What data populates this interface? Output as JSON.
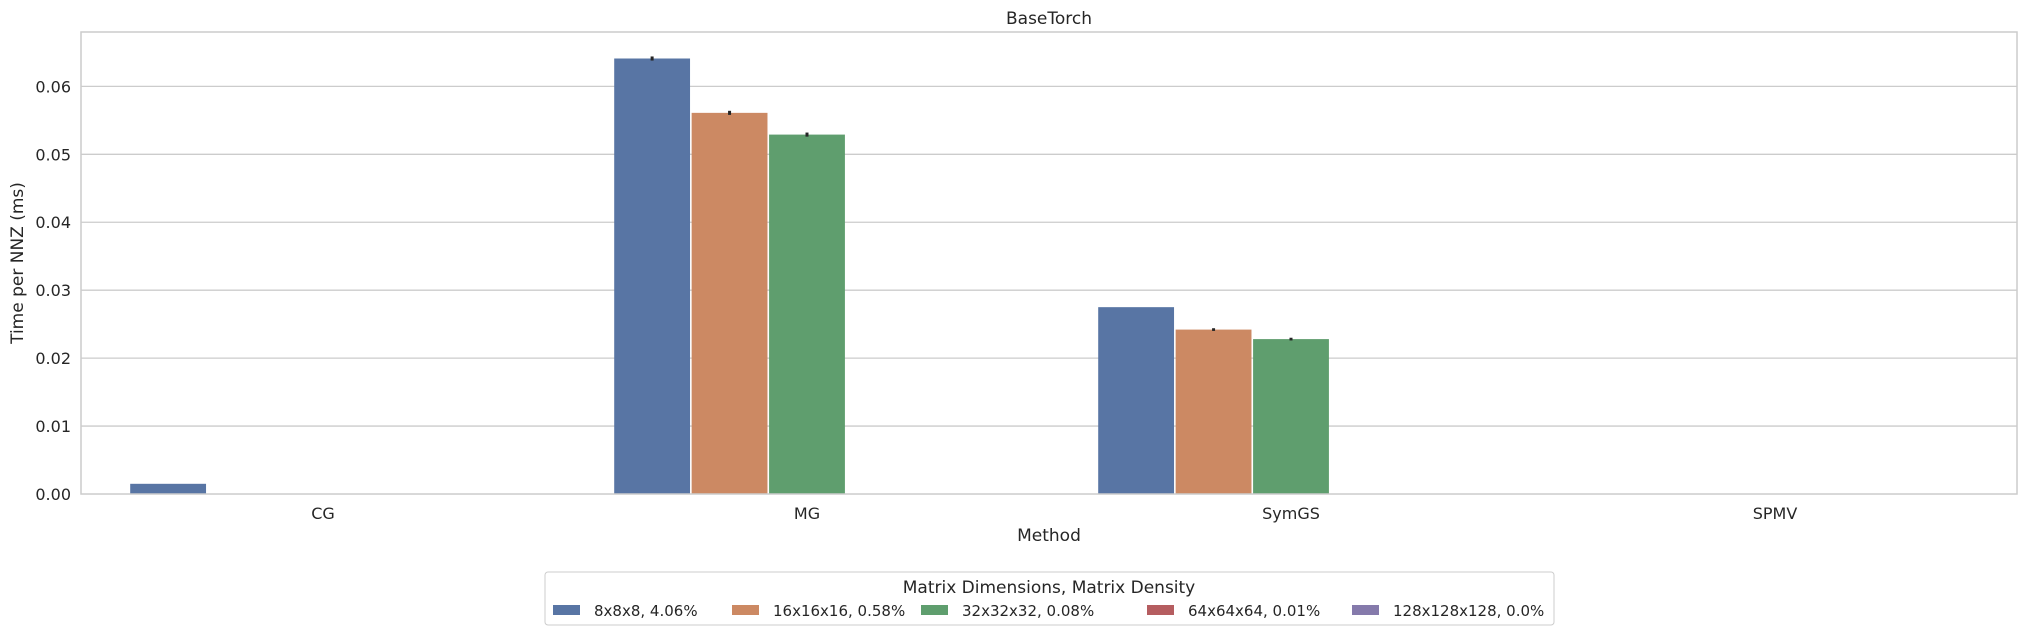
{
  "chart_data": {
    "type": "bar",
    "title": "BaseTorch",
    "xlabel": "Method",
    "ylabel": "Time per NNZ (ms)",
    "categories": [
      "CG",
      "MG",
      "SymGS",
      "SPMV"
    ],
    "ylim": [
      0,
      0.068
    ],
    "yticks": [
      0.0,
      0.01,
      0.02,
      0.03,
      0.04,
      0.05,
      0.06
    ],
    "ytick_labels": [
      "0.00",
      "0.01",
      "0.02",
      "0.03",
      "0.04",
      "0.05",
      "0.06"
    ],
    "grid": "horizontal",
    "legend": {
      "title": "Matrix Dimensions, Matrix Density",
      "placement": "bottom-center"
    },
    "series": [
      {
        "name": "8x8x8, 4.06%",
        "color": "#5875a4",
        "values": [
          0.0015,
          0.0641,
          0.0275,
          0.0
        ],
        "errors": [
          0.0,
          0.0003,
          0.0,
          0.0
        ]
      },
      {
        "name": "16x16x16, 0.58%",
        "color": "#cc8963",
        "values": [
          0.0,
          0.0561,
          0.0242,
          0.0
        ],
        "errors": [
          0.0,
          0.0003,
          0.0002,
          0.0
        ]
      },
      {
        "name": "32x32x32, 0.08%",
        "color": "#5f9e6e",
        "values": [
          0.0,
          0.0529,
          0.0228,
          0.0
        ],
        "errors": [
          0.0,
          0.0003,
          0.0002,
          0.0
        ]
      },
      {
        "name": "64x64x64, 0.01%",
        "color": "#b55d60",
        "values": [
          0.0,
          0.0,
          0.0,
          0.0
        ],
        "errors": [
          0.0,
          0.0,
          0.0,
          0.0
        ]
      },
      {
        "name": "128x128x128, 0.0%",
        "color": "#857aab",
        "values": [
          0.0,
          0.0,
          0.0,
          0.0
        ],
        "errors": [
          0.0,
          0.0,
          0.0,
          0.0
        ]
      }
    ]
  }
}
